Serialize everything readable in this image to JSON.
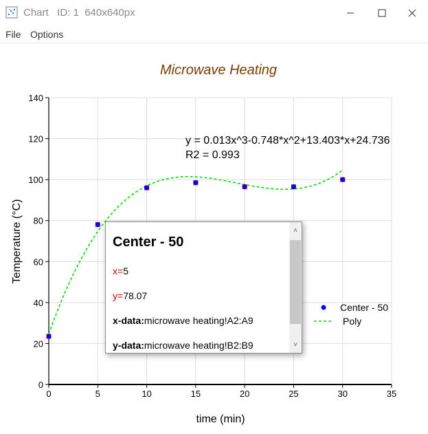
{
  "window": {
    "title": "Chart   ID: 1  640x640px",
    "icon": "scatter-chart-icon"
  },
  "menu": {
    "items": [
      "File",
      "Options"
    ]
  },
  "chart_data": {
    "type": "scatter",
    "title": "Microwave Heating",
    "xlabel": "time (min)",
    "ylabel": "Temperature (°C)",
    "xlim": [
      0,
      35
    ],
    "ylim": [
      0,
      140
    ],
    "xticks": [
      0,
      5,
      10,
      15,
      20,
      25,
      30,
      35
    ],
    "yticks": [
      0,
      20,
      40,
      60,
      80,
      100,
      120,
      140
    ],
    "grid": true,
    "legend_position": "right",
    "series": [
      {
        "name": "Center - 50",
        "type": "scatter",
        "color": "#0000ff",
        "x": [
          0,
          5,
          10,
          15,
          20,
          25,
          30
        ],
        "y": [
          23.5,
          78.07,
          96,
          98.5,
          96.5,
          96.5,
          100
        ]
      },
      {
        "name": "Poly",
        "type": "line",
        "style": "dashed",
        "color": "#00dd00",
        "coefficients": [
          0.013,
          -0.748,
          13.403,
          24.736
        ]
      }
    ],
    "annotation": {
      "equation": "y = 0.013x^3-0.748*x^2+13.403*x+24.736",
      "r2": "R2 = 0.993"
    },
    "title_color": "#7a3b00"
  },
  "tooltip": {
    "title": "Center - 50",
    "x_label": "x=",
    "x_value": "5",
    "y_label": "y=",
    "y_value": "78.07",
    "xdata_label": "x-data:",
    "xdata_value": "microwave heating!A2:A9",
    "ydata_label": "y-data:",
    "ydata_value": "microwave heating!B2:B9"
  }
}
